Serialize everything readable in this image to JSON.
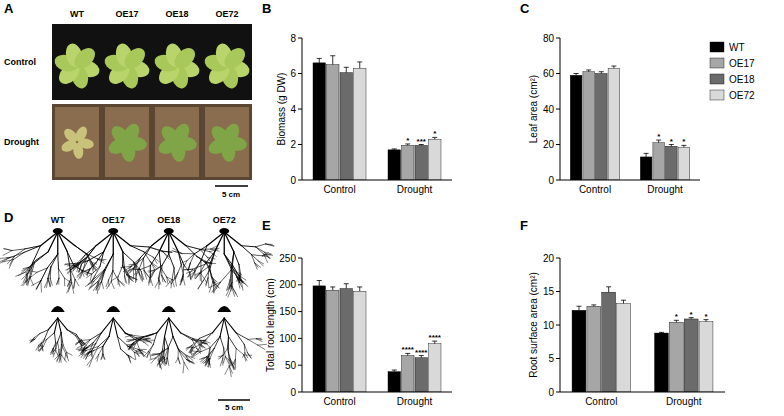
{
  "chart_data": [
    {
      "panel": "B",
      "type": "bar",
      "y_label": "Biomass (g DW)",
      "categories": [
        "Control",
        "Drought"
      ],
      "ylim": [
        0,
        8
      ],
      "yticks": [
        0,
        2,
        4,
        6,
        8
      ],
      "series": [
        {
          "name": "WT",
          "color": "#000000",
          "values": [
            6.6,
            1.7
          ],
          "errors": [
            0.25,
            0.05
          ],
          "significance": [
            null,
            null
          ]
        },
        {
          "name": "OE17",
          "color": "#a6a6a6",
          "values": [
            6.5,
            1.95
          ],
          "errors": [
            0.5,
            0.08
          ],
          "significance": [
            null,
            "*"
          ]
        },
        {
          "name": "OE18",
          "color": "#6b6b6b",
          "values": [
            6.05,
            1.95
          ],
          "errors": [
            0.3,
            0.05
          ],
          "significance": [
            null,
            "***"
          ]
        },
        {
          "name": "OE72",
          "color": "#d9d9d9",
          "values": [
            6.3,
            2.3
          ],
          "errors": [
            0.35,
            0.1
          ],
          "significance": [
            null,
            "*"
          ]
        }
      ]
    },
    {
      "panel": "C",
      "type": "bar",
      "y_label": "Leaf area (cm²)",
      "categories": [
        "Control",
        "Drought"
      ],
      "ylim": [
        0,
        80
      ],
      "yticks": [
        0,
        20,
        40,
        60,
        80
      ],
      "legend": "right",
      "series": [
        {
          "name": "WT",
          "color": "#000000",
          "values": [
            59,
            13
          ],
          "errors": [
            1,
            2
          ],
          "significance": [
            null,
            null
          ]
        },
        {
          "name": "OE17",
          "color": "#a6a6a6",
          "values": [
            61,
            21
          ],
          "errors": [
            1,
            1.5
          ],
          "significance": [
            null,
            "*"
          ]
        },
        {
          "name": "OE18",
          "color": "#6b6b6b",
          "values": [
            60,
            19
          ],
          "errors": [
            1,
            1
          ],
          "significance": [
            null,
            "*"
          ]
        },
        {
          "name": "OE72",
          "color": "#d9d9d9",
          "values": [
            63,
            18.5
          ],
          "errors": [
            1.2,
            1
          ],
          "significance": [
            null,
            "*"
          ]
        }
      ]
    },
    {
      "panel": "E",
      "type": "bar",
      "y_label": "Total root length (cm)",
      "categories": [
        "Control",
        "Drought"
      ],
      "ylim": [
        0,
        250
      ],
      "yticks": [
        0,
        50,
        100,
        150,
        200,
        250
      ],
      "series": [
        {
          "name": "WT",
          "color": "#000000",
          "values": [
            198,
            38
          ],
          "errors": [
            10,
            3
          ],
          "significance": [
            null,
            null
          ]
        },
        {
          "name": "OE17",
          "color": "#a6a6a6",
          "values": [
            190,
            68
          ],
          "errors": [
            6,
            4
          ],
          "significance": [
            null,
            "****"
          ]
        },
        {
          "name": "OE18",
          "color": "#6b6b6b",
          "values": [
            193,
            64
          ],
          "errors": [
            9,
            4
          ],
          "significance": [
            null,
            "****"
          ]
        },
        {
          "name": "OE72",
          "color": "#d9d9d9",
          "values": [
            188,
            90
          ],
          "errors": [
            8,
            5
          ],
          "significance": [
            null,
            "****"
          ]
        }
      ]
    },
    {
      "panel": "F",
      "type": "bar",
      "y_label": "Root surface area (cm²)",
      "categories": [
        "Control",
        "Drought"
      ],
      "ylim": [
        0,
        20
      ],
      "yticks": [
        0,
        5,
        10,
        15,
        20
      ],
      "series": [
        {
          "name": "WT",
          "color": "#000000",
          "values": [
            12.2,
            8.8
          ],
          "errors": [
            0.6,
            0.1
          ],
          "significance": [
            null,
            null
          ]
        },
        {
          "name": "OE17",
          "color": "#a6a6a6",
          "values": [
            12.8,
            10.4
          ],
          "errors": [
            0.2,
            0.3
          ],
          "significance": [
            null,
            "*"
          ]
        },
        {
          "name": "OE18",
          "color": "#6b6b6b",
          "values": [
            14.9,
            10.9
          ],
          "errors": [
            0.8,
            0.2
          ],
          "significance": [
            null,
            "*"
          ]
        },
        {
          "name": "OE72",
          "color": "#d9d9d9",
          "values": [
            13.2,
            10.5
          ],
          "errors": [
            0.5,
            0.3
          ],
          "significance": [
            null,
            "*"
          ]
        }
      ]
    }
  ],
  "photo_panels": [
    {
      "panel": "A",
      "columns": [
        "WT",
        "OE17",
        "OE18",
        "OE72"
      ],
      "rows": [
        "Control",
        "Drought"
      ],
      "scale_bar": "5 cm"
    },
    {
      "panel": "D",
      "columns": [
        "WT",
        "OE17",
        "OE18",
        "OE72"
      ],
      "scale_bar": "5 cm"
    }
  ]
}
